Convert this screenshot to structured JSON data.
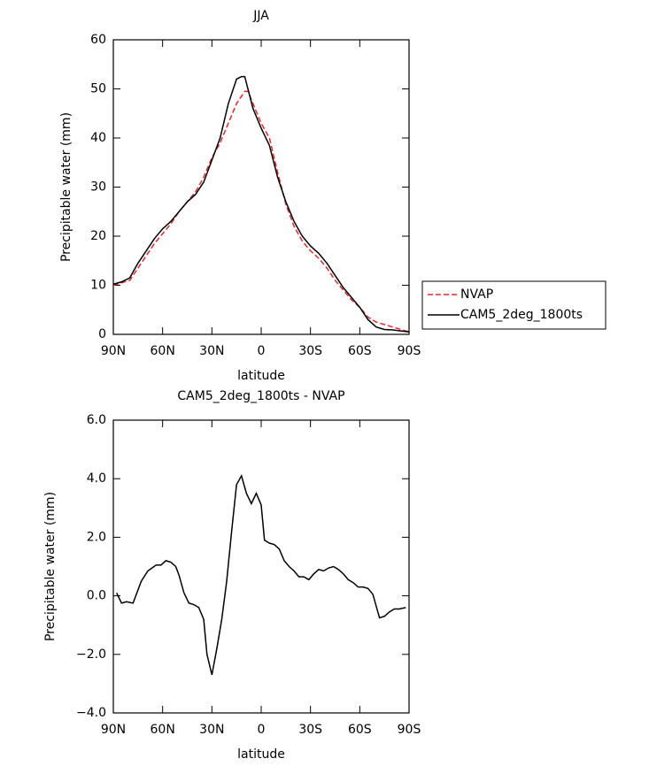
{
  "chart_data": [
    {
      "type": "line",
      "title": "JJA",
      "xlabel": "latitude",
      "ylabel": "Precipitable water (mm)",
      "xlim": [
        90,
        -90
      ],
      "xticks": [
        {
          "value": 90,
          "label": "90N"
        },
        {
          "value": 60,
          "label": "60N"
        },
        {
          "value": 30,
          "label": "30N"
        },
        0,
        {
          "value": -30,
          "label": "30S"
        },
        {
          "value": -60,
          "label": "60S"
        },
        {
          "value": -90,
          "label": "90S"
        }
      ],
      "ylim": [
        0,
        60
      ],
      "yticks": [
        0,
        10,
        20,
        30,
        40,
        50,
        60
      ],
      "legend": "right",
      "series": [
        {
          "name": "NVAP",
          "color": "#e8262b",
          "dash": true,
          "x": [
            90,
            85,
            80,
            75,
            70,
            65,
            60,
            55,
            50,
            45,
            40,
            35,
            30,
            25,
            20,
            15,
            10,
            8,
            5,
            0,
            -5,
            -10,
            -15,
            -20,
            -25,
            -30,
            -35,
            -40,
            -45,
            -50,
            -55,
            -60,
            -65,
            -70,
            -75,
            -80,
            -85,
            -90
          ],
          "values": [
            10,
            10.5,
            11,
            13.5,
            16,
            18.5,
            20.5,
            22.5,
            25,
            27,
            29,
            32,
            36,
            39,
            43,
            47,
            49.5,
            49.5,
            47,
            43,
            40,
            33,
            26.5,
            22,
            19,
            17,
            15.5,
            13.5,
            11,
            9,
            7,
            5.5,
            3.5,
            2.5,
            2,
            1.5,
            1,
            0.5
          ]
        },
        {
          "name": "CAM5_2deg_1800ts",
          "color": "#000000",
          "dash": false,
          "x": [
            90,
            85,
            80,
            75,
            70,
            65,
            60,
            55,
            50,
            45,
            40,
            35,
            30,
            25,
            20,
            15,
            12,
            10,
            5,
            0,
            -5,
            -10,
            -15,
            -20,
            -25,
            -30,
            -35,
            -40,
            -45,
            -50,
            -55,
            -60,
            -65,
            -70,
            -75,
            -80,
            -85,
            -90
          ],
          "values": [
            10.2,
            10.7,
            11.5,
            14.5,
            17,
            19.5,
            21.5,
            23,
            25,
            27,
            28.5,
            31,
            35.5,
            40,
            47,
            52,
            52.5,
            52.5,
            46,
            42,
            38.5,
            32,
            27,
            23,
            20,
            18,
            16.5,
            14.5,
            12,
            9.5,
            7.5,
            5.5,
            3,
            1.5,
            1,
            0.9,
            0.7,
            0.5
          ]
        }
      ]
    },
    {
      "type": "line",
      "title": "CAM5_2deg_1800ts - NVAP",
      "xlabel": "latitude",
      "ylabel": "Precipitable water (mm)",
      "xlim": [
        90,
        -90
      ],
      "xticks": [
        {
          "value": 90,
          "label": "90N"
        },
        {
          "value": 60,
          "label": "60N"
        },
        {
          "value": 30,
          "label": "30N"
        },
        0,
        {
          "value": -30,
          "label": "30S"
        },
        {
          "value": -60,
          "label": "60S"
        },
        {
          "value": -90,
          "label": "90S"
        }
      ],
      "ylim": [
        -4,
        6
      ],
      "yticks": [
        {
          "value": -4,
          "label": "−4.0"
        },
        {
          "value": -2,
          "label": "−2.0"
        },
        {
          "value": 0,
          "label": "0.0"
        },
        {
          "value": 2,
          "label": "2.0"
        },
        {
          "value": 4,
          "label": "4.0"
        },
        {
          "value": 6,
          "label": "6.0"
        }
      ],
      "color": "#000000",
      "x": [
        88,
        85,
        82,
        78,
        73,
        69,
        64,
        61,
        58,
        55,
        52,
        50,
        47,
        44,
        41,
        38,
        35,
        33,
        30,
        27,
        24,
        21,
        18,
        15,
        12,
        9,
        6,
        3,
        0,
        -2,
        -5,
        -8,
        -11,
        -14,
        -17,
        -20,
        -23,
        -26,
        -29,
        -32,
        -35,
        -38,
        -41,
        -44,
        -47,
        -50,
        -53,
        -56,
        -59,
        -62,
        -65,
        -68,
        -72,
        -75,
        -78,
        -81,
        -84,
        -88
      ],
      "values": [
        0.1,
        -0.25,
        -0.2,
        -0.25,
        0.5,
        0.85,
        1.05,
        1.05,
        1.2,
        1.15,
        1.0,
        0.7,
        0.1,
        -0.25,
        -0.3,
        -0.4,
        -0.8,
        -2.0,
        -2.7,
        -1.8,
        -0.8,
        0.5,
        2.2,
        3.8,
        4.1,
        3.5,
        3.15,
        3.5,
        3.1,
        1.9,
        1.8,
        1.75,
        1.6,
        1.2,
        1.0,
        0.85,
        0.65,
        0.65,
        0.55,
        0.75,
        0.9,
        0.85,
        0.95,
        1.0,
        0.9,
        0.75,
        0.55,
        0.45,
        0.3,
        0.3,
        0.25,
        0.05,
        -0.75,
        -0.7,
        -0.55,
        -0.45,
        -0.45,
        -0.4
      ]
    }
  ]
}
